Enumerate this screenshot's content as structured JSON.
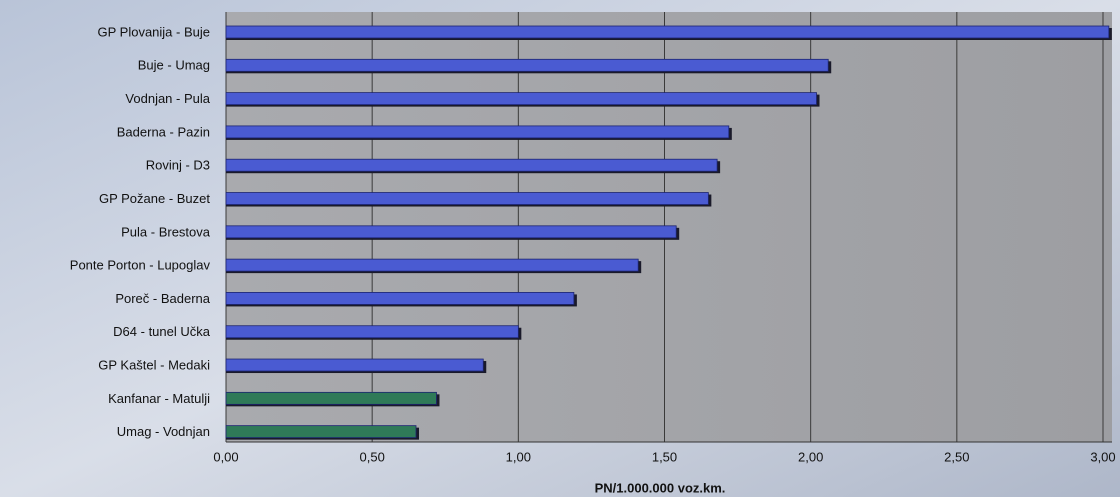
{
  "chart_data": {
    "type": "barh",
    "categories": [
      "GP Plovanija - Buje",
      "Buje - Umag",
      "Vodnjan - Pula",
      "Baderna - Pazin",
      "Rovinj - D3",
      "GP Požane - Buzet",
      "Pula - Brestova",
      "Ponte Porton - Lupoglav",
      "Poreč - Baderna",
      "D64 - tunel Učka",
      "GP Kaštel - Medaki",
      "Kanfanar - Matulji",
      "Umag - Vodnjan"
    ],
    "values": [
      3.02,
      2.06,
      2.02,
      1.72,
      1.68,
      1.65,
      1.54,
      1.41,
      1.19,
      1.0,
      0.88,
      0.72,
      0.65
    ],
    "colors": [
      "#4a5bd2",
      "#4a5bd2",
      "#4a5bd2",
      "#4a5bd2",
      "#4a5bd2",
      "#4a5bd2",
      "#4a5bd2",
      "#4a5bd2",
      "#4a5bd2",
      "#4a5bd2",
      "#4a5bd2",
      "#2f7a58",
      "#2f7a58"
    ],
    "xlim": [
      0,
      3
    ],
    "xticks": [
      {
        "value": 0,
        "label": "0,00"
      },
      {
        "value": 0.5,
        "label": "0,50"
      },
      {
        "value": 1,
        "label": "1,00"
      },
      {
        "value": 1.5,
        "label": "1,50"
      },
      {
        "value": 2,
        "label": "2,00"
      },
      {
        "value": 2.5,
        "label": "2,50"
      },
      {
        "value": 3,
        "label": "3,00"
      }
    ],
    "xlabel": "PN/1.000.000 voz.km.",
    "grid": true
  }
}
